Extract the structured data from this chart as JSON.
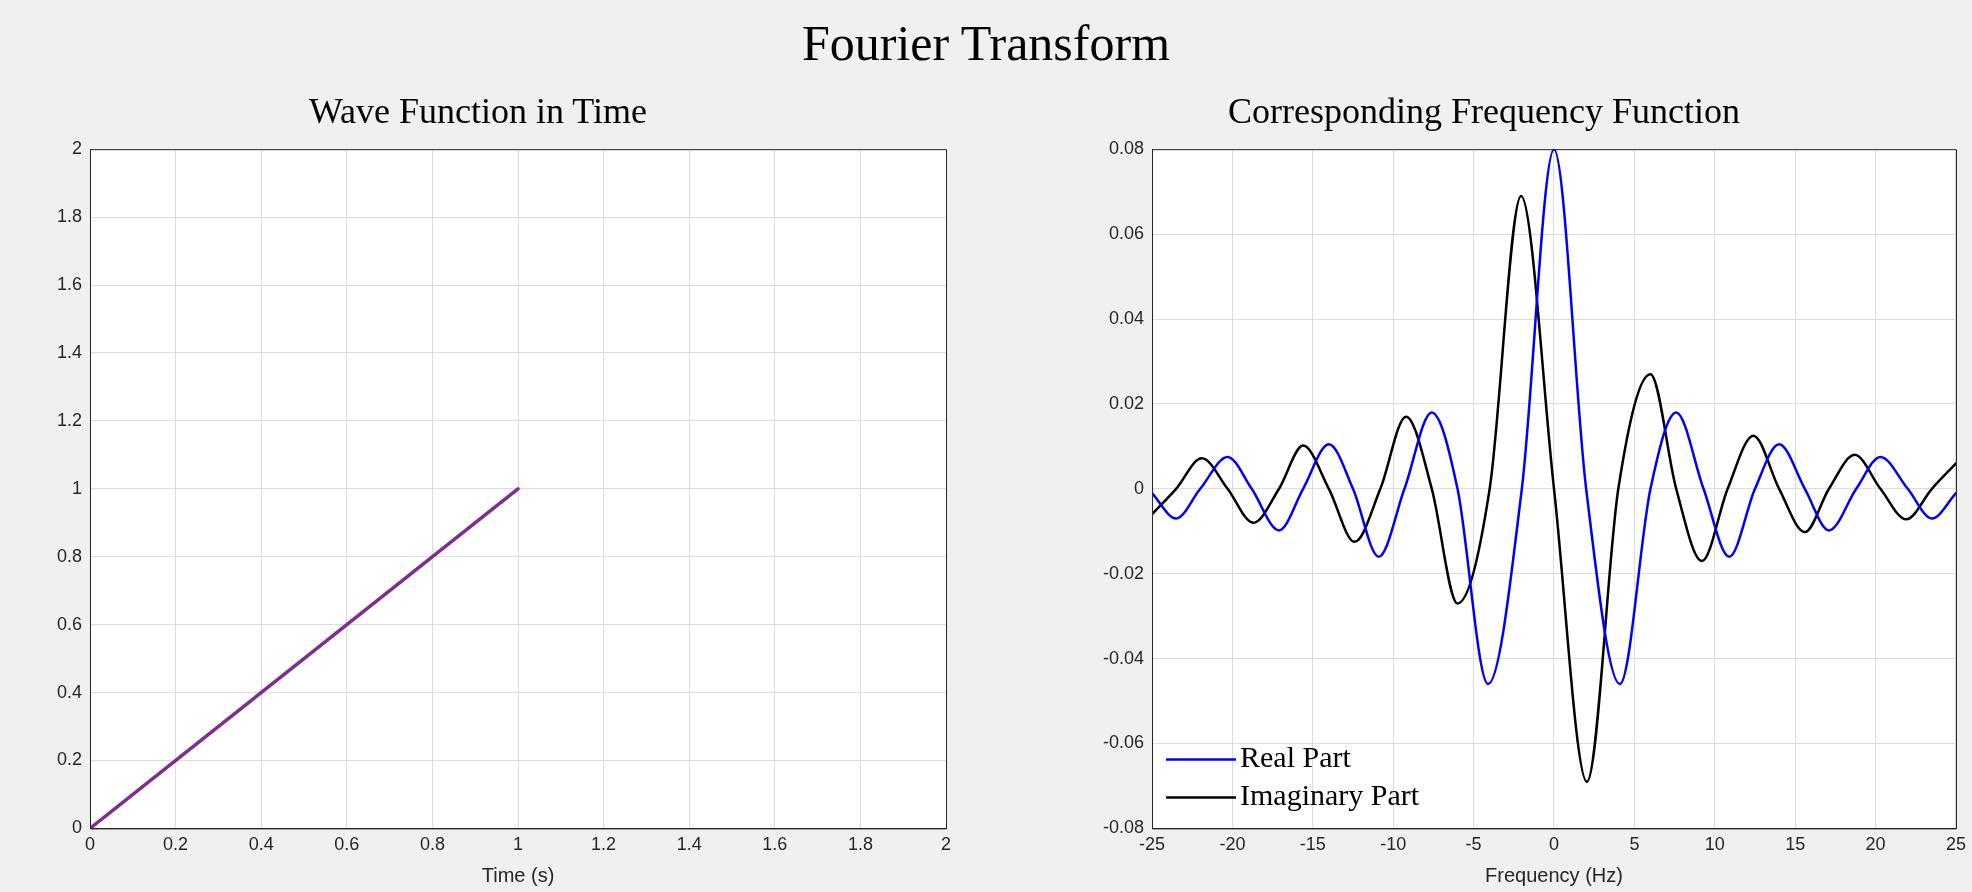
{
  "chart_data": [
    {
      "type": "line",
      "title": "Wave Function in Time",
      "annotations": [
        "Fourier Transform"
      ],
      "xlabel": "Time (s)",
      "xlim": [
        0,
        2
      ],
      "xticks": [
        0,
        0.2,
        0.4,
        0.6,
        0.8,
        1,
        1.2,
        1.4,
        1.6,
        1.8,
        2
      ],
      "ylim": [
        0,
        2
      ],
      "yticks": [
        0,
        0.2,
        0.4,
        0.6,
        0.8,
        1,
        1.2,
        1.4,
        1.6,
        1.8,
        2
      ],
      "grid": true,
      "series": [
        {
          "color": "#7e2f8e",
          "x": [
            0,
            1
          ],
          "values": [
            0,
            1
          ]
        }
      ]
    },
    {
      "type": "line",
      "title": "Corresponding Frequency Function",
      "xlabel": "Frequency (Hz)",
      "xlim": [
        -25,
        25
      ],
      "xticks": [
        -25,
        -20,
        -15,
        -10,
        -5,
        0,
        5,
        10,
        15,
        20,
        25
      ],
      "ylim": [
        -0.08,
        0.08
      ],
      "yticks": [
        -0.08,
        -0.06,
        -0.04,
        -0.02,
        0,
        0.02,
        0.04,
        0.06,
        0.08
      ],
      "grid": true,
      "legend": "bottom left",
      "series": [
        {
          "name": "Real Part",
          "color": "#0000ff",
          "x": [
            -25,
            -23.5,
            -22,
            -20.3,
            -18.8,
            -17.1,
            -15.6,
            -14,
            -12.5,
            -10.9,
            -9.3,
            -7.6,
            -6,
            -4.1,
            -2,
            0,
            2,
            4.1,
            6,
            7.6,
            9.3,
            10.9,
            12.5,
            14,
            15.6,
            17.1,
            18.8,
            20.3,
            22,
            23.5,
            25
          ],
          "values": [
            -0.001,
            -0.007,
            0,
            0.0075,
            0,
            -0.0098,
            0,
            0.0105,
            0,
            -0.016,
            0,
            0.018,
            0,
            -0.046,
            0,
            0.08,
            0,
            -0.046,
            0,
            0.018,
            0,
            -0.016,
            0,
            0.0105,
            0,
            -0.0098,
            0,
            0.0075,
            0,
            -0.007,
            -0.001
          ]
        },
        {
          "name": "Imaginary Part",
          "color": "#000000",
          "x": [
            -25,
            -23.5,
            -21.9,
            -20.3,
            -18.7,
            -17.1,
            -15.6,
            -14,
            -12.4,
            -10.8,
            -9.2,
            -7.6,
            -6,
            -4,
            -2.05,
            0,
            2.05,
            4,
            6,
            7.6,
            9.2,
            10.8,
            12.4,
            14,
            15.6,
            17.1,
            18.7,
            20.3,
            21.9,
            23.5,
            25
          ],
          "values": [
            -0.006,
            0,
            0.0072,
            0,
            -0.008,
            0,
            0.0102,
            0,
            -0.0125,
            0,
            0.017,
            0,
            -0.027,
            0,
            0.069,
            0,
            -0.069,
            0,
            0.027,
            0,
            -0.017,
            0,
            0.0125,
            0,
            -0.0102,
            0,
            0.008,
            0,
            -0.0072,
            0,
            0.006
          ]
        }
      ]
    }
  ]
}
